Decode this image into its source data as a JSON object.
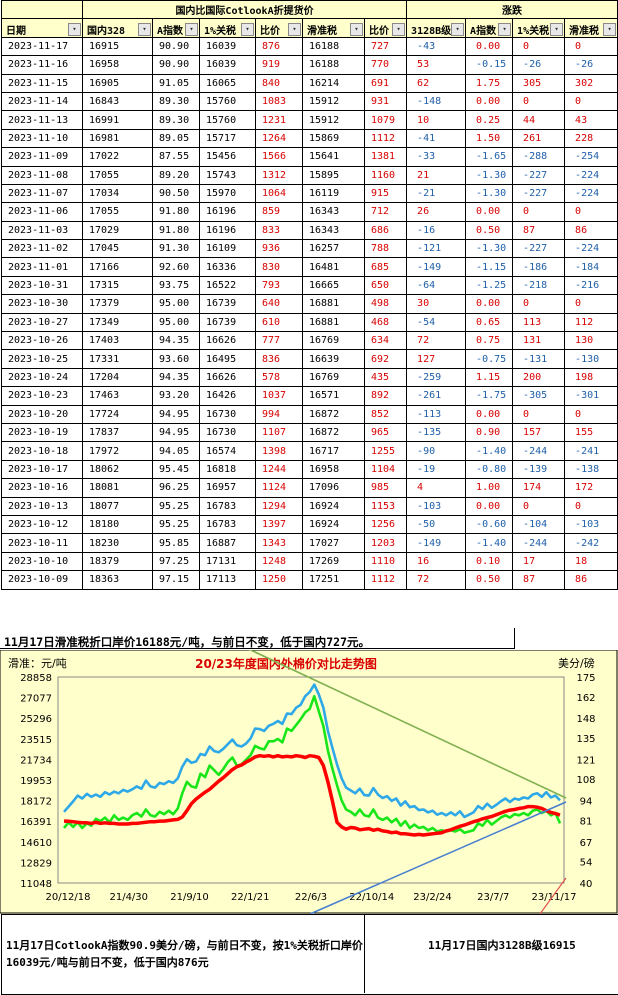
{
  "table": {
    "group_headers": {
      "left": "国内比国际CotlookA折提货价",
      "right": "涨跌"
    },
    "columns": [
      "日期",
      "国内328",
      "A指数",
      "1%关税",
      "比价",
      "滑准税",
      "比价",
      "3128B级",
      "A指数",
      "1%关税",
      "滑准税"
    ],
    "rows": [
      [
        "2023-11-17",
        "16915",
        "90.90",
        "16039",
        "876",
        "16188",
        "727",
        "-43",
        "0.00",
        "0",
        "0"
      ],
      [
        "2023-11-16",
        "16958",
        "90.90",
        "16039",
        "919",
        "16188",
        "770",
        "53",
        "-0.15",
        "-26",
        "-26"
      ],
      [
        "2023-11-15",
        "16905",
        "91.05",
        "16065",
        "840",
        "16214",
        "691",
        "62",
        "1.75",
        "305",
        "302"
      ],
      [
        "2023-11-14",
        "16843",
        "89.30",
        "15760",
        "1083",
        "15912",
        "931",
        "-148",
        "0.00",
        "0",
        "0"
      ],
      [
        "2023-11-13",
        "16991",
        "89.30",
        "15760",
        "1231",
        "15912",
        "1079",
        "10",
        "0.25",
        "44",
        "43"
      ],
      [
        "2023-11-10",
        "16981",
        "89.05",
        "15717",
        "1264",
        "15869",
        "1112",
        "-41",
        "1.50",
        "261",
        "228"
      ],
      [
        "2023-11-09",
        "17022",
        "87.55",
        "15456",
        "1566",
        "15641",
        "1381",
        "-33",
        "-1.65",
        "-288",
        "-254"
      ],
      [
        "2023-11-08",
        "17055",
        "89.20",
        "15743",
        "1312",
        "15895",
        "1160",
        "21",
        "-1.30",
        "-227",
        "-224"
      ],
      [
        "2023-11-07",
        "17034",
        "90.50",
        "15970",
        "1064",
        "16119",
        "915",
        "-21",
        "-1.30",
        "-227",
        "-224"
      ],
      [
        "2023-11-06",
        "17055",
        "91.80",
        "16196",
        "859",
        "16343",
        "712",
        "26",
        "0.00",
        "0",
        "0"
      ],
      [
        "2023-11-03",
        "17029",
        "91.80",
        "16196",
        "833",
        "16343",
        "686",
        "-16",
        "0.50",
        "87",
        "86"
      ],
      [
        "2023-11-02",
        "17045",
        "91.30",
        "16109",
        "936",
        "16257",
        "788",
        "-121",
        "-1.30",
        "-227",
        "-224"
      ],
      [
        "2023-11-01",
        "17166",
        "92.60",
        "16336",
        "830",
        "16481",
        "685",
        "-149",
        "-1.15",
        "-186",
        "-184"
      ],
      [
        "2023-10-31",
        "17315",
        "93.75",
        "16522",
        "793",
        "16665",
        "650",
        "-64",
        "-1.25",
        "-218",
        "-216"
      ],
      [
        "2023-10-30",
        "17379",
        "95.00",
        "16739",
        "640",
        "16881",
        "498",
        "30",
        "0.00",
        "0",
        "0"
      ],
      [
        "2023-10-27",
        "17349",
        "95.00",
        "16739",
        "610",
        "16881",
        "468",
        "-54",
        "0.65",
        "113",
        "112"
      ],
      [
        "2023-10-26",
        "17403",
        "94.35",
        "16626",
        "777",
        "16769",
        "634",
        "72",
        "0.75",
        "131",
        "130"
      ],
      [
        "2023-10-25",
        "17331",
        "93.60",
        "16495",
        "836",
        "16639",
        "692",
        "127",
        "-0.75",
        "-131",
        "-130"
      ],
      [
        "2023-10-24",
        "17204",
        "94.35",
        "16626",
        "578",
        "16769",
        "435",
        "-259",
        "1.15",
        "200",
        "198"
      ],
      [
        "2023-10-23",
        "17463",
        "93.20",
        "16426",
        "1037",
        "16571",
        "892",
        "-261",
        "-1.75",
        "-305",
        "-301"
      ],
      [
        "2023-10-20",
        "17724",
        "94.95",
        "16730",
        "994",
        "16872",
        "852",
        "-113",
        "0.00",
        "0",
        "0"
      ],
      [
        "2023-10-19",
        "17837",
        "94.95",
        "16730",
        "1107",
        "16872",
        "965",
        "-135",
        "0.90",
        "157",
        "155"
      ],
      [
        "2023-10-18",
        "17972",
        "94.05",
        "16574",
        "1398",
        "16717",
        "1255",
        "-90",
        "-1.40",
        "-244",
        "-241"
      ],
      [
        "2023-10-17",
        "18062",
        "95.45",
        "16818",
        "1244",
        "16958",
        "1104",
        "-19",
        "-0.80",
        "-139",
        "-138"
      ],
      [
        "2023-10-16",
        "18081",
        "96.25",
        "16957",
        "1124",
        "17096",
        "985",
        "4",
        "1.00",
        "174",
        "172"
      ],
      [
        "2023-10-13",
        "18077",
        "95.25",
        "16783",
        "1294",
        "16924",
        "1153",
        "-103",
        "0.00",
        "0",
        "0"
      ],
      [
        "2023-10-12",
        "18180",
        "95.25",
        "16783",
        "1397",
        "16924",
        "1256",
        "-50",
        "-0.60",
        "-104",
        "-103"
      ],
      [
        "2023-10-11",
        "18230",
        "95.85",
        "16887",
        "1343",
        "17027",
        "1203",
        "-149",
        "-1.40",
        "-244",
        "-242"
      ],
      [
        "2023-10-10",
        "18379",
        "97.25",
        "17131",
        "1248",
        "17269",
        "1110",
        "16",
        "0.10",
        "17",
        "18"
      ],
      [
        "2023-10-09",
        "18363",
        "97.15",
        "17113",
        "1250",
        "17251",
        "1112",
        "72",
        "0.50",
        "87",
        "86"
      ]
    ]
  },
  "note_top": "11月17日滑准税折口岸价16188元/吨，与前日不变，低于国内727元。",
  "note_bottom_left": "11月17日CotlookA指数90.9美分/磅，与前日不变，按1%关税折口岸价16039元/吨与前日不变，低于国内876元",
  "note_bottom_right": "11月17日国内3128B级16915",
  "colors": {
    "header_bg": "#ffffcc",
    "plot_bg": "#ffffcc",
    "chart_bg": "#ffffcc",
    "red": "#d80000",
    "blue": "#1f5fa8",
    "series_blue": "#2fa8e8",
    "series_green": "#19e619",
    "series_red": "#ff0000"
  },
  "chart_data": {
    "type": "line",
    "title": "20/23年度国内外棉价对比走势图",
    "left_unit_label": "滑准：元/吨",
    "right_unit_label": "美分/磅",
    "x_tick_labels": [
      "20/12/18",
      "21/4/30",
      "21/9/10",
      "22/1/21",
      "22/6/3",
      "22/10/14",
      "23/2/24",
      "23/7/7",
      "23/11/17"
    ],
    "y_left_ticks": [
      11048,
      12829,
      14610,
      16391,
      18172,
      19953,
      21734,
      23515,
      25296,
      27077,
      28858
    ],
    "y_right_ticks": [
      40,
      54,
      67,
      81,
      94,
      108,
      121,
      135,
      148,
      162,
      175
    ],
    "ylim_left": [
      11048,
      28858
    ],
    "ylim_right": [
      40,
      175
    ],
    "grid": false,
    "series": [
      {
        "name": "",
        "color": "#2fa8e8",
        "axis": "left",
        "values": [
          17200,
          17650,
          18100,
          18600,
          18350,
          18750,
          18500,
          18700,
          18500,
          18900,
          18700,
          18950,
          18800,
          19100,
          18950,
          19150,
          19400,
          19200,
          19900,
          19400,
          19300,
          19700,
          19600,
          19850,
          19700,
          20100,
          21100,
          21750,
          21450,
          21550,
          22200,
          22100,
          22850,
          22450,
          22350,
          22650,
          23050,
          23450,
          22950,
          22850,
          23100,
          23550,
          24400,
          24350,
          24200,
          24650,
          24800,
          25050,
          24800,
          25700,
          25650,
          26200,
          26450,
          27200,
          27550,
          28200,
          27350,
          26200,
          24200,
          22700,
          21300,
          20100,
          19300,
          19050,
          18800,
          19200,
          18650,
          18600,
          19250,
          18700,
          18400,
          18550,
          18150,
          18350,
          17750,
          18100,
          17600,
          17700,
          17350,
          17400,
          17150,
          17300,
          16950,
          17100,
          16900,
          17150,
          16900,
          17250,
          16750,
          16950,
          17150,
          17700,
          17450,
          17900,
          17550,
          17800,
          18100,
          18350,
          18050,
          18350,
          18250,
          18450,
          18350,
          18700,
          18800,
          18500,
          18900,
          18450,
          18600,
          18200
        ]
      },
      {
        "name": "",
        "color": "#19e619",
        "axis": "left",
        "values": [
          15800,
          16300,
          15900,
          16300,
          15800,
          16200,
          16000,
          16600,
          16400,
          16700,
          16300,
          16900,
          16500,
          16700,
          16500,
          16900,
          17100,
          16800,
          17400,
          16900,
          16800,
          17200,
          17000,
          17300,
          17000,
          17500,
          18800,
          19800,
          19400,
          19300,
          20500,
          20200,
          21200,
          20800,
          20400,
          20900,
          21500,
          21900,
          21200,
          21300,
          21700,
          22100,
          22900,
          22700,
          22600,
          23300,
          23300,
          23500,
          23200,
          24400,
          24200,
          24700,
          25200,
          25800,
          26100,
          27200,
          25900,
          24600,
          22500,
          20900,
          19500,
          18200,
          17400,
          17200,
          16900,
          17400,
          16900,
          16800,
          17400,
          16700,
          16500,
          16700,
          16300,
          16600,
          16000,
          16400,
          15800,
          16100,
          15800,
          15900,
          15600,
          15800,
          15500,
          15600,
          15500,
          15600,
          15500,
          15700,
          15400,
          15500,
          15600,
          16200,
          16000,
          16500,
          16100,
          16400,
          16700,
          16900,
          16700,
          17000,
          16900,
          17100,
          16900,
          17300,
          17400,
          17100,
          17300,
          16900,
          17100,
          16200
        ]
      },
      {
        "name": "",
        "color": "#ff0000",
        "axis": "left",
        "values": [
          16400,
          16380,
          16350,
          16300,
          16250,
          16250,
          16200,
          16300,
          16200,
          16250,
          16200,
          16200,
          16150,
          16150,
          16150,
          16200,
          16200,
          16250,
          16300,
          16350,
          16350,
          16400,
          16400,
          16450,
          16500,
          16550,
          16750,
          17300,
          17900,
          18300,
          18600,
          18900,
          19150,
          19500,
          19850,
          20150,
          20500,
          20850,
          21100,
          21250,
          21500,
          21700,
          21950,
          22050,
          22000,
          22050,
          21950,
          22050,
          21950,
          22000,
          21950,
          22050,
          22000,
          21900,
          22050,
          22000,
          21900,
          21200,
          19800,
          18100,
          16300,
          15900,
          15700,
          15850,
          15800,
          15650,
          15700,
          15750,
          15600,
          15700,
          15550,
          15500,
          15400,
          15450,
          15300,
          15300,
          15250,
          15200,
          15250,
          15200,
          15250,
          15300,
          15350,
          15400,
          15550,
          15650,
          15800,
          15950,
          16050,
          16200,
          16350,
          16450,
          16600,
          16700,
          16800,
          16950,
          17100,
          17250,
          17350,
          17400,
          17500,
          17550,
          17650,
          17650,
          17600,
          17500,
          17300,
          17150,
          17050,
          16920
        ]
      }
    ]
  }
}
